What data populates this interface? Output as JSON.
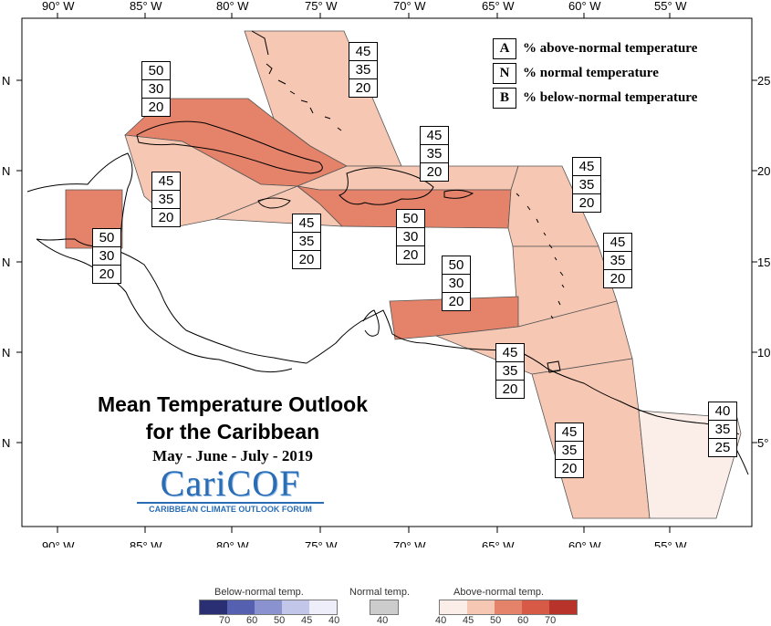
{
  "colors": {
    "above_40": "#fbeee8",
    "above_45": "#f6c7b3",
    "above_50": "#e5836a",
    "above_60": "#d65a46",
    "above_70": "#b8332a",
    "normal": "#cccccc",
    "below": [
      "#2a2f73",
      "#5560b0",
      "#8a92cf",
      "#c2c6e8",
      "#eeeefa"
    ],
    "logo_blue": "#2a6db5"
  },
  "axes": {
    "lon_ticks": [
      "90° W",
      "85° W",
      "80° W",
      "75° W",
      "70° W",
      "65° W",
      "60° W",
      "55° W"
    ],
    "lat_left": [
      "N",
      "N",
      "N",
      "N",
      "N"
    ],
    "lat_right": [
      "25",
      "20",
      "15",
      "10",
      "5°"
    ]
  },
  "legend": {
    "items": [
      {
        "key": "A",
        "text": "% above-normal temperature"
      },
      {
        "key": "N",
        "text": "% normal temperature"
      },
      {
        "key": "B",
        "text": "% below-normal temperature"
      }
    ]
  },
  "title": {
    "line1": "Mean Temperature Outlook",
    "line2": "for the Caribbean",
    "season": "May - June - July - 2019"
  },
  "logo": {
    "word": "CariCOF",
    "subtitle": "CARIBBEAN CLIMATE OUTLOOK FORUM"
  },
  "regions": [
    {
      "id": "bahamas",
      "probs": [
        "45",
        "35",
        "20"
      ],
      "category": "above_45"
    },
    {
      "id": "cuba",
      "probs": [
        "50",
        "30",
        "20"
      ],
      "category": "above_50"
    },
    {
      "id": "cayman-jamaica-sea",
      "probs": [
        "45",
        "35",
        "20"
      ],
      "category": "above_45"
    },
    {
      "id": "jamaica",
      "probs": [
        "45",
        "35",
        "20"
      ],
      "category": "above_45"
    },
    {
      "id": "belize",
      "probs": [
        "50",
        "30",
        "20"
      ],
      "category": "above_50"
    },
    {
      "id": "hispaniola-north",
      "probs": [
        "45",
        "35",
        "20"
      ],
      "category": "above_45"
    },
    {
      "id": "hispaniola-pr",
      "probs": [
        "50",
        "30",
        "20"
      ],
      "category": "above_50"
    },
    {
      "id": "leeward",
      "probs": [
        "45",
        "35",
        "20"
      ],
      "category": "above_45"
    },
    {
      "id": "windward",
      "probs": [
        "45",
        "35",
        "20"
      ],
      "category": "above_45"
    },
    {
      "id": "abc-islands",
      "probs": [
        "50",
        "30",
        "20"
      ],
      "category": "above_50"
    },
    {
      "id": "trinidad",
      "probs": [
        "45",
        "35",
        "20"
      ],
      "category": "above_45"
    },
    {
      "id": "guyana",
      "probs": [
        "45",
        "35",
        "20"
      ],
      "category": "above_45"
    },
    {
      "id": "french-guiana",
      "probs": [
        "40",
        "35",
        "25"
      ],
      "category": "above_40"
    }
  ],
  "colorbar": {
    "below_label": "Below-normal temp.",
    "normal_label": "Normal temp.",
    "above_label": "Above-normal temp.",
    "below_ticks": [
      "70",
      "60",
      "50",
      "45",
      "40"
    ],
    "normal_ticks": [
      "40"
    ],
    "above_ticks": [
      "40",
      "45",
      "50",
      "60",
      "70"
    ]
  }
}
